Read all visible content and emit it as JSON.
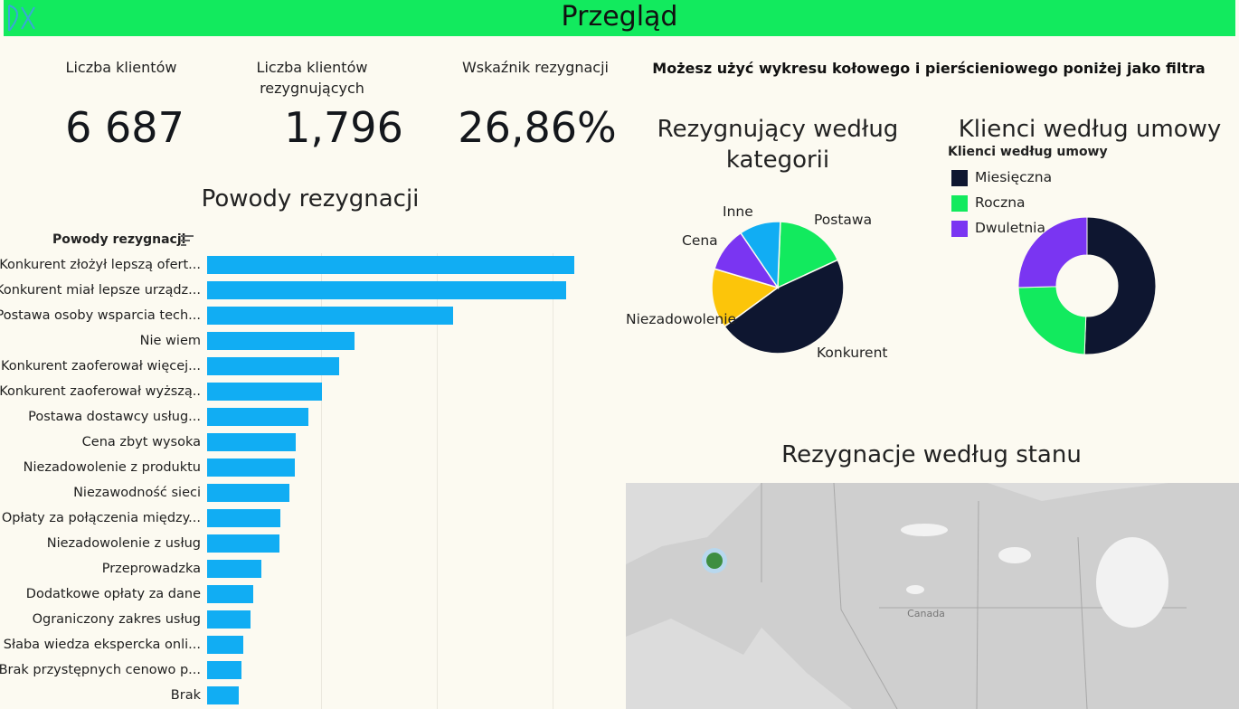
{
  "header": {
    "title": "Przegląd"
  },
  "kpis": [
    {
      "label_line1": "Liczba klientów",
      "label_line2": "",
      "value": "6 687"
    },
    {
      "label_line1": "Liczba klientów",
      "label_line2": "rezygnujących",
      "value": "1,796"
    },
    {
      "label_line1": "Wskaźnik rezygnacji",
      "label_line2": "",
      "value": "26,86%"
    }
  ],
  "filter_hint": "Możesz użyć wykresu kołowego i pierścieniowego poniżej jako filtra",
  "reasons_chart": {
    "title": "Powody rezygnacji",
    "column_header": "Powody rezygnacji",
    "sort_icon": "sort-descending-icon",
    "bar_color": "#11adf3"
  },
  "category_chart": {
    "title_line1": "Rezygnujący według",
    "title_line2": "kategorii"
  },
  "contract_chart": {
    "title": "Klienci według umowy",
    "legend_title": "Klienci według umowy"
  },
  "map_section": {
    "title": "Rezygnacje według stanu",
    "country_label": "Canada"
  },
  "chart_data": [
    {
      "type": "bar",
      "orientation": "horizontal",
      "categories": [
        "Konkurent złożył lepszą ofert...",
        "Konkurent miał lepsze urządz...",
        "Postawa osoby wsparcia tech...",
        "Nie wiem",
        "Konkurent zaoferował więcej...",
        "Konkurent zaoferował wyższą..",
        "Postawa dostawcy usług...",
        "Cena zbyt wysoka",
        "Niezadowolenie z produktu",
        "Niezawodność sieci",
        "Opłaty za połączenia między...",
        "Niezadowolenie z usług",
        "Przeprowadzka",
        "Dodatkowe opłaty za dane",
        "Ograniczony zakres usług",
        "Słaba wiedza ekspercka onli...",
        "Brak przystępnych cenowo p...",
        "Brak"
      ],
      "values": [
        311,
        304,
        208,
        125,
        112,
        97,
        86,
        75,
        74,
        70,
        62,
        61,
        46,
        39,
        37,
        31,
        29,
        27
      ],
      "xlim": [
        0,
        330
      ],
      "grid": true,
      "ylabel": "Powody rezygnacji"
    },
    {
      "type": "pie",
      "title": "Rezygnujący według kategorii",
      "categories": [
        "Konkurent",
        "Postawa",
        "Inne",
        "Cena",
        "Niezadowolenie"
      ],
      "values": [
        841,
        314,
        182,
        196,
        263
      ],
      "colors": [
        "#0e1630",
        "#12ea5e",
        "#11adf3",
        "#7a35f2",
        "#fcc50a"
      ]
    },
    {
      "type": "pie",
      "variant": "donut",
      "title": "Klienci według umowy",
      "categories": [
        "Miesięczna",
        "Roczna",
        "Dwuletnia"
      ],
      "values": [
        3384,
        1604,
        1699
      ],
      "colors": [
        "#0e1630",
        "#12ea5e",
        "#7a35f2"
      ],
      "legend": "top-left"
    }
  ]
}
